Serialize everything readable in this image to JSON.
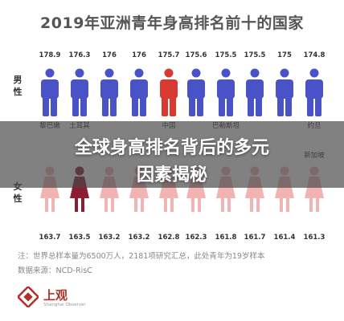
{
  "title": "2019年亚洲青年身高排名前十的国家",
  "row_labels": {
    "male": "男\n性",
    "female": "女\n性"
  },
  "banner": {
    "line1": "全球身高排名背后的多元",
    "line2": "因素揭秘"
  },
  "note": {
    "line1": "注：世界总样本量为6500万人，2181项研究汇总，此处青年为19岁样本",
    "line2": "数据来源：NCD-RisC"
  },
  "logo": {
    "name": "上观",
    "sub": "Shanghai Observer"
  },
  "colors": {
    "male": "#4a52c8",
    "male_highlight": "#d83a32",
    "female": "#f2b3b3",
    "female_highlight": "#8c1c32",
    "value_text": "#333333"
  },
  "chart_data": {
    "type": "pictograph",
    "title": "2019年亚洲青年身高排名前十的国家",
    "top_labels_visible": [
      "黎巴嫩",
      "土耳其",
      "",
      "",
      "中国",
      "",
      "巴勒斯坦",
      "",
      "",
      "约旦"
    ],
    "bottom_labels_visible": [
      "",
      "",
      "",
      "",
      "",
      "",
      "",
      "",
      "",
      "新加坡"
    ],
    "series": [
      {
        "name": "男性",
        "values": [
          178.9,
          176.3,
          176,
          176,
          175.7,
          175.6,
          175.5,
          175.5,
          175,
          174.8
        ],
        "highlight_index": 4
      },
      {
        "name": "女性",
        "values": [
          163.7,
          163.5,
          163.2,
          163.2,
          162.8,
          162.3,
          161.8,
          161.7,
          161.4,
          161.3
        ],
        "highlight_index": 1
      }
    ]
  }
}
